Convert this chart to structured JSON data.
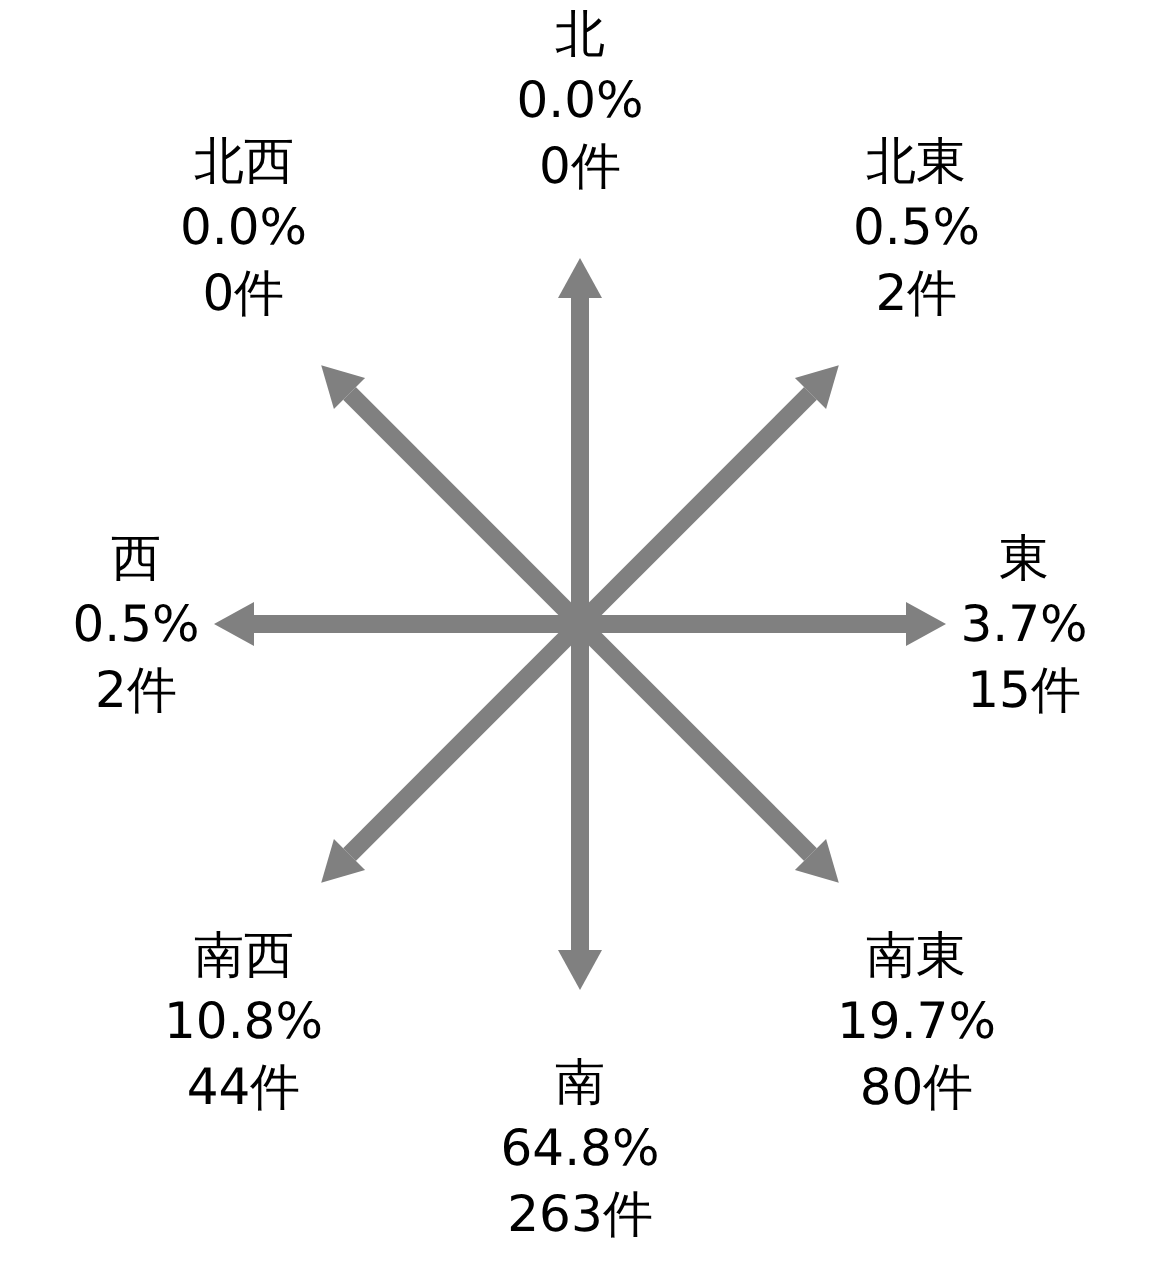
{
  "chart_data": {
    "type": "other",
    "categories": [
      "北",
      "北東",
      "東",
      "南東",
      "南",
      "南西",
      "西",
      "北西"
    ],
    "series": [
      {
        "values": [
          0.0,
          0.5,
          3.7,
          19.7,
          64.8,
          10.8,
          0.5,
          0.0
        ],
        "value_labels": [
          "0.0%",
          "0.5%",
          "3.7%",
          "19.7%",
          "64.8%",
          "10.8%",
          "0.5%",
          "0.0%"
        ]
      },
      {
        "values": [
          0,
          2,
          15,
          80,
          263,
          44,
          2,
          0
        ],
        "value_labels": [
          "0件",
          "2件",
          "15件",
          "80件",
          "263件",
          "44件",
          "2件",
          "0件"
        ]
      }
    ],
    "color": "#808080"
  }
}
